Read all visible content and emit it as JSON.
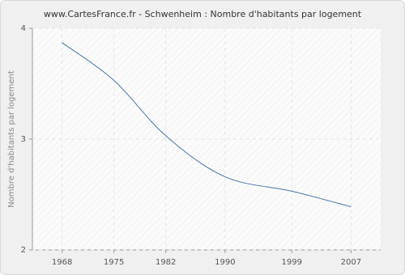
{
  "chart_data": {
    "type": "line",
    "title": "www.CartesFrance.fr - Schwenheim : Nombre d'habitants par logement",
    "y_label": "Nombre d'habitants par logement",
    "x": [
      1968,
      1975,
      1982,
      1990,
      1999,
      2007
    ],
    "series": [
      {
        "name": "Schwenheim",
        "color": "#4a74a8",
        "values": [
          3.87,
          3.53,
          3.03,
          2.66,
          2.53,
          2.39
        ]
      }
    ],
    "xlim": [
      1964,
      2011
    ],
    "xticks": [
      1968,
      1975,
      1982,
      1990,
      1999,
      2007
    ],
    "ylim": [
      2,
      4
    ],
    "yticks": [
      2,
      3,
      4
    ],
    "grid": true
  }
}
